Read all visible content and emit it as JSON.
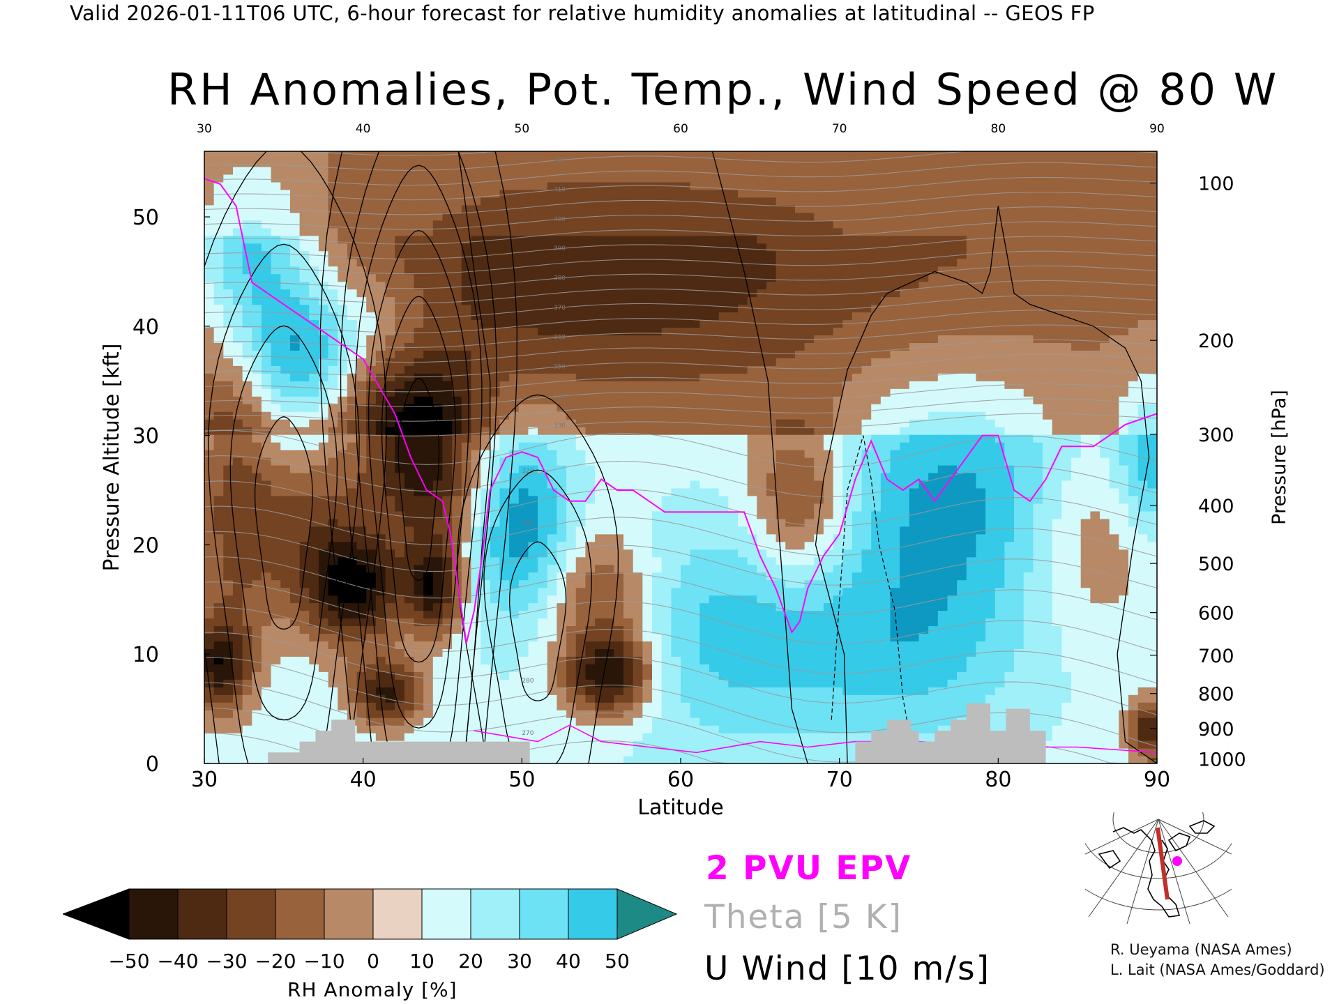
{
  "header": "Valid 2026-01-11T06 UTC, 6-hour forecast for relative humidity anomalies at latitudinal -- GEOS FP",
  "title": "RH Anomalies, Pot. Temp., Wind Speed @ 80 W",
  "chart_data": {
    "type": "heatmap",
    "title": "RH Anomalies, Pot. Temp., Wind Speed @ 80 W",
    "xlabel": "Latitude",
    "ylabel": "Pressure Altitude [kft]",
    "y2label": "Pressure [hPa]",
    "xlim": [
      30,
      90
    ],
    "ylim": [
      0,
      56
    ],
    "x_ticks": [
      30,
      40,
      50,
      60,
      70,
      80,
      90
    ],
    "y_ticks": [
      0,
      10,
      20,
      30,
      40,
      50
    ],
    "pressure_ticks": [
      {
        "hpa": "1000",
        "kft": 0.4
      },
      {
        "hpa": "900",
        "kft": 3.2
      },
      {
        "hpa": "800",
        "kft": 6.4
      },
      {
        "hpa": "700",
        "kft": 9.9
      },
      {
        "hpa": "600",
        "kft": 13.8
      },
      {
        "hpa": "500",
        "kft": 18.3
      },
      {
        "hpa": "400",
        "kft": 23.6
      },
      {
        "hpa": "300",
        "kft": 30.1
      },
      {
        "hpa": "200",
        "kft": 38.7
      },
      {
        "hpa": "100",
        "kft": 53.1
      }
    ],
    "rh_anomaly_field": {
      "note": "dry regions (brown) and moist regions (cyan/teal) in percent RH anomaly",
      "blobs": [
        {
          "lat": 33,
          "kft": 47,
          "v": 40,
          "sx": 2.5,
          "sy": 6
        },
        {
          "lat": 36,
          "kft": 37,
          "v": 45,
          "sx": 2.5,
          "sy": 5
        },
        {
          "lat": 41,
          "kft": 40,
          "v": 20,
          "sx": 3,
          "sy": 4
        },
        {
          "lat": 32,
          "kft": 23,
          "v": -32,
          "sx": 2,
          "sy": 9
        },
        {
          "lat": 31,
          "kft": 9,
          "v": -50,
          "sx": 1.3,
          "sy": 3
        },
        {
          "lat": 39.5,
          "kft": 16,
          "v": -55,
          "sx": 2.2,
          "sy": 3.5
        },
        {
          "lat": 41.5,
          "kft": 6.5,
          "v": -50,
          "sx": 1.6,
          "sy": 2.2
        },
        {
          "lat": 37,
          "kft": 22,
          "v": -28,
          "sx": 2.5,
          "sy": 6
        },
        {
          "lat": 44.5,
          "kft": 16,
          "v": -50,
          "sx": 1.2,
          "sy": 3
        },
        {
          "lat": 44,
          "kft": 26,
          "v": -42,
          "sx": 2.5,
          "sy": 5
        },
        {
          "lat": 43,
          "kft": 33,
          "v": -28,
          "sx": 3,
          "sy": 5
        },
        {
          "lat": 48,
          "kft": 45,
          "v": -18,
          "sx": 8,
          "sy": 7
        },
        {
          "lat": 50,
          "kft": 22,
          "v": 40,
          "sx": 2.2,
          "sy": 6
        },
        {
          "lat": 55.5,
          "kft": 8,
          "v": -55,
          "sx": 2,
          "sy": 2.6
        },
        {
          "lat": 55,
          "kft": 15,
          "v": -32,
          "sx": 2.5,
          "sy": 4.5
        },
        {
          "lat": 60,
          "kft": 45,
          "v": -20,
          "sx": 9,
          "sy": 8
        },
        {
          "lat": 67.5,
          "kft": 24,
          "v": -35,
          "sx": 2.2,
          "sy": 5
        },
        {
          "lat": 63,
          "kft": 12,
          "v": 25,
          "sx": 5,
          "sy": 7
        },
        {
          "lat": 77,
          "kft": 24,
          "v": 35,
          "sx": 5,
          "sy": 8
        },
        {
          "lat": 74,
          "kft": 10,
          "v": 22,
          "sx": 5,
          "sy": 6
        },
        {
          "lat": 86,
          "kft": 20,
          "v": -18,
          "sx": 3,
          "sy": 6
        },
        {
          "lat": 89.5,
          "kft": 3,
          "v": -45,
          "sx": 1,
          "sy": 2
        },
        {
          "lat": 89.5,
          "kft": 28,
          "v": 30,
          "sx": 1.5,
          "sy": 5
        },
        {
          "lat": 78,
          "kft": 48,
          "v": -10,
          "sx": 10,
          "sy": 8
        }
      ]
    },
    "epv_2pvu": {
      "name": "2 PVU EPV",
      "points": [
        [
          30,
          53.5
        ],
        [
          31,
          53
        ],
        [
          31.5,
          52
        ],
        [
          32,
          51
        ],
        [
          33,
          44
        ],
        [
          35,
          42
        ],
        [
          36,
          41
        ],
        [
          38,
          39
        ],
        [
          40,
          37
        ],
        [
          42,
          32
        ],
        [
          43,
          28
        ],
        [
          44,
          25
        ],
        [
          45,
          24
        ],
        [
          45.5,
          21
        ],
        [
          46,
          16
        ],
        [
          46.5,
          11
        ],
        [
          47,
          14
        ],
        [
          47.5,
          19
        ],
        [
          48,
          25
        ],
        [
          49,
          28
        ],
        [
          50,
          28.5
        ],
        [
          51,
          28
        ],
        [
          52,
          25
        ],
        [
          53,
          24
        ],
        [
          54,
          24
        ],
        [
          55,
          26
        ],
        [
          56,
          25
        ],
        [
          57,
          25
        ],
        [
          58,
          24
        ],
        [
          59,
          23
        ],
        [
          60,
          23
        ],
        [
          62,
          23
        ],
        [
          64,
          23
        ],
        [
          65,
          19
        ],
        [
          66,
          16
        ],
        [
          67,
          12
        ],
        [
          67.5,
          13
        ],
        [
          68,
          16
        ],
        [
          69,
          19
        ],
        [
          70,
          21
        ],
        [
          71,
          26
        ],
        [
          72,
          29.5
        ],
        [
          73,
          26
        ],
        [
          74,
          25
        ],
        [
          75,
          26
        ],
        [
          76,
          24
        ],
        [
          77,
          26
        ],
        [
          78,
          28
        ],
        [
          79,
          30
        ],
        [
          80,
          30
        ],
        [
          81,
          25
        ],
        [
          82,
          24
        ],
        [
          83,
          26
        ],
        [
          84,
          29
        ],
        [
          86,
          29
        ],
        [
          88,
          31
        ],
        [
          90,
          32
        ]
      ]
    },
    "u_wind_contours": {
      "name": "U Wind [10 m/s]",
      "interval": 10,
      "jets": [
        {
          "lat": 43.5,
          "kft": 26,
          "max": 60,
          "width": 3.0
        },
        {
          "lat": 51,
          "kft": 13,
          "max": 30,
          "width": 3.0
        },
        {
          "lat": 35,
          "kft": 22,
          "max": 40,
          "width": 3.5
        }
      ]
    },
    "theta": {
      "name": "Theta [5 K]",
      "interval": 5,
      "labels": [
        "270",
        "280",
        "310",
        "320",
        "330",
        "340",
        "350",
        "360",
        "370",
        "380",
        "390",
        "400",
        "410",
        "420"
      ]
    },
    "terrain": [
      [
        34,
        0
      ],
      [
        34,
        1
      ],
      [
        36,
        1
      ],
      [
        36,
        2
      ],
      [
        37,
        2
      ],
      [
        37,
        3
      ],
      [
        38,
        3
      ],
      [
        38,
        4
      ],
      [
        39.5,
        4
      ],
      [
        39.5,
        2
      ],
      [
        50.5,
        2
      ],
      [
        50.5,
        0
      ]
    ],
    "terrain2": [
      [
        71,
        0
      ],
      [
        71,
        2
      ],
      [
        72,
        2
      ],
      [
        72,
        3
      ],
      [
        73,
        3
      ],
      [
        73,
        4
      ],
      [
        74.5,
        4
      ],
      [
        74.5,
        3
      ],
      [
        75,
        3
      ],
      [
        75,
        2
      ],
      [
        76,
        2
      ],
      [
        76,
        3
      ],
      [
        77,
        3
      ],
      [
        77,
        4
      ],
      [
        78,
        4
      ],
      [
        78,
        5.5
      ],
      [
        79.5,
        5.5
      ],
      [
        79.5,
        3
      ],
      [
        80.5,
        3
      ],
      [
        80.5,
        5
      ],
      [
        82,
        5
      ],
      [
        82,
        3
      ],
      [
        83,
        3
      ],
      [
        83,
        0
      ]
    ]
  },
  "colorbar": {
    "label": "RH Anomaly [%]",
    "ticks": [
      "−50",
      "−40",
      "−30",
      "−20",
      "−10",
      "0",
      "10",
      "20",
      "30",
      "40",
      "50"
    ],
    "colors": [
      "#2a1608",
      "#4e2a12",
      "#744322",
      "#98623c",
      "#b88966",
      "#e9d2c2",
      "#d4fafc",
      "#a0f0fa",
      "#6de2f4",
      "#35cae8",
      "#0d99c2"
    ],
    "low_color": "#000000",
    "high_color": "#1e8a86"
  },
  "legend": {
    "epv": "2 PVU EPV",
    "theta": "Theta [5 K]",
    "uwind": "U Wind [10 m/s]",
    "epv_color": "#ff00ff",
    "theta_color": "#b0b0b0"
  },
  "credits": {
    "line1": "R. Ueyama (NASA Ames)",
    "line2": "L. Lait (NASA Ames/Goddard)"
  }
}
